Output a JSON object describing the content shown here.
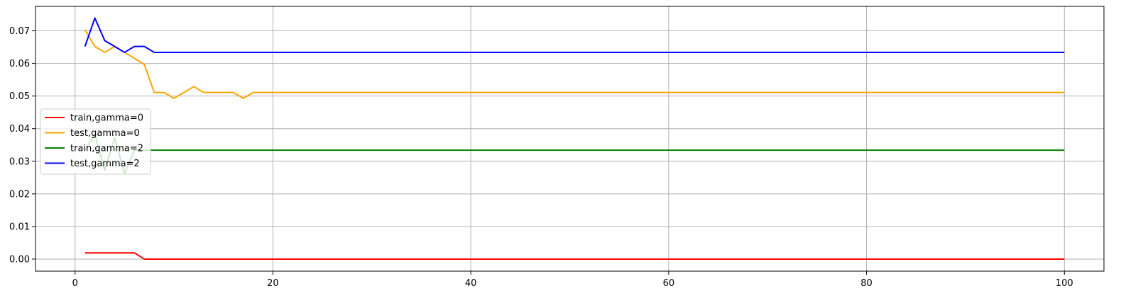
{
  "chart_data": {
    "type": "line",
    "title": "",
    "xlabel": "",
    "ylabel": "",
    "xlim": [
      -4,
      104
    ],
    "ylim": [
      -0.0037,
      0.0775
    ],
    "grid": true,
    "legend_position": "center-left",
    "xticks": [
      0,
      20,
      40,
      60,
      80,
      100
    ],
    "xtick_labels": [
      "0",
      "20",
      "40",
      "60",
      "80",
      "100"
    ],
    "yticks": [
      0.0,
      0.01,
      0.02,
      0.03,
      0.04,
      0.05,
      0.06,
      0.07
    ],
    "ytick_labels": [
      "0.00",
      "0.01",
      "0.02",
      "0.03",
      "0.04",
      "0.05",
      "0.06",
      "0.07"
    ],
    "series": [
      {
        "name": "train,gamma=0",
        "color": "#ff0000",
        "points": [
          [
            1,
            0.0019
          ],
          [
            6,
            0.0019
          ],
          [
            7,
            0.0
          ],
          [
            100,
            0.0
          ]
        ]
      },
      {
        "name": "test,gamma=0",
        "color": "#ffa500",
        "points": [
          [
            1,
            0.0703
          ],
          [
            2,
            0.0652
          ],
          [
            3,
            0.0634
          ],
          [
            4,
            0.0652
          ],
          [
            5,
            0.0634
          ],
          [
            6,
            0.0616
          ],
          [
            7,
            0.0597
          ],
          [
            8,
            0.0511
          ],
          [
            9,
            0.0511
          ],
          [
            10,
            0.0493
          ],
          [
            11,
            0.0511
          ],
          [
            12,
            0.0529
          ],
          [
            13,
            0.0511
          ],
          [
            14,
            0.0511
          ],
          [
            15,
            0.0511
          ],
          [
            16,
            0.0511
          ],
          [
            17,
            0.0493
          ],
          [
            18,
            0.0511
          ],
          [
            100,
            0.0511
          ]
        ]
      },
      {
        "name": "train,gamma=2",
        "color": "#008000",
        "points": [
          [
            1,
            0.0334
          ],
          [
            2,
            0.0383
          ],
          [
            3,
            0.0272
          ],
          [
            4,
            0.0372
          ],
          [
            5,
            0.0262
          ],
          [
            6,
            0.0334
          ],
          [
            7,
            0.0334
          ],
          [
            8,
            0.0334
          ],
          [
            100,
            0.0334
          ]
        ]
      },
      {
        "name": "test,gamma=2",
        "color": "#0000ff",
        "points": [
          [
            1,
            0.0652
          ],
          [
            2,
            0.0739
          ],
          [
            3,
            0.067
          ],
          [
            4,
            0.0652
          ],
          [
            5,
            0.0634
          ],
          [
            6,
            0.0652
          ],
          [
            7,
            0.0652
          ],
          [
            8,
            0.0634
          ],
          [
            100,
            0.0634
          ]
        ]
      }
    ]
  }
}
